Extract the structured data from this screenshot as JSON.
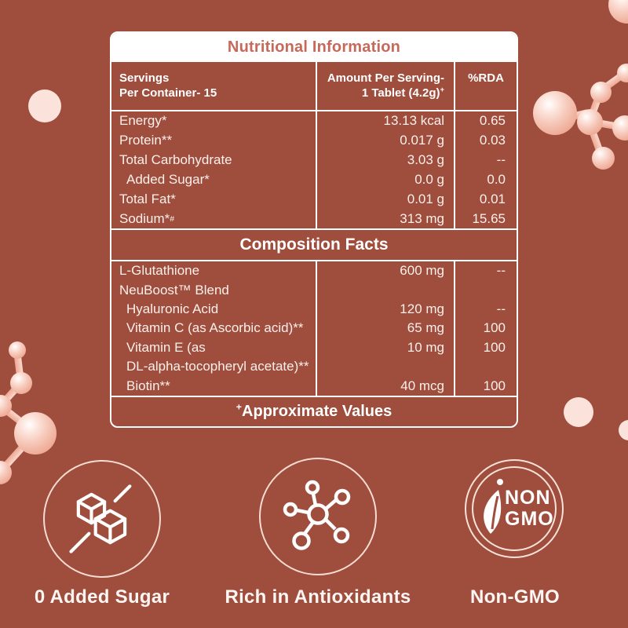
{
  "colors": {
    "background": "#9F4D3C",
    "table_border": "#FFFFFF",
    "title_bar_bg": "#FFFFFF",
    "title_text": "#C7695A",
    "body_text": "#FAF0EC",
    "decor_pink": "#FBE3DB"
  },
  "icons": {
    "no_sugar": "sugar-cubes-crossed-icon",
    "antioxidants": "molecule-network-icon",
    "non_gmo": "leaf-badge-icon"
  },
  "table": {
    "title": "Nutritional Information",
    "header": {
      "col1_line1": "Servings",
      "col1_line2": "Per Container- 15",
      "col2_line1": "Amount Per Serving-",
      "col2_line2": "1 Tablet (4.2g)",
      "col2_line2_sup": "+",
      "col3": "%RDA"
    },
    "nutrition_rows": [
      {
        "label": "Energy*",
        "amount": "13.13 kcal",
        "rda": "0.65"
      },
      {
        "label": "Protein**",
        "amount": "0.017 g",
        "rda": "0.03"
      },
      {
        "label": "Total Carbohydrate",
        "amount": "3.03 g",
        "rda": "--"
      },
      {
        "label": "Added Sugar*",
        "amount": "0.0 g",
        "rda": "0.0",
        "indent": true
      },
      {
        "label": "Total Fat*",
        "amount": "0.01 g",
        "rda": "0.01"
      },
      {
        "label": "Sodium*",
        "label_sup": "#",
        "amount": "313 mg",
        "rda": "15.65"
      }
    ],
    "composition_title": "Composition Facts",
    "composition_rows": [
      {
        "label": "L-Glutathione",
        "amount": "600 mg",
        "rda": "--"
      },
      {
        "label": "NeuBoost™ Blend",
        "amount": "",
        "rda": ""
      },
      {
        "label": "Hyaluronic Acid",
        "amount": "120 mg",
        "rda": "--",
        "indent": true
      },
      {
        "label": "Vitamin C (as Ascorbic acid)**",
        "amount": "65 mg",
        "rda": "100",
        "indent": true
      },
      {
        "label": "Vitamin E (as",
        "amount": "10 mg",
        "rda": "100",
        "indent": true
      },
      {
        "label": "DL-alpha-tocopheryl acetate)**",
        "amount": "",
        "rda": "",
        "indent": true
      },
      {
        "label": "Biotin**",
        "amount": "40 mcg",
        "rda": "100",
        "indent": true
      }
    ],
    "footer_sup": "+",
    "footer_text": "Approximate Values"
  },
  "badges": [
    {
      "label": "0 Added Sugar"
    },
    {
      "label": "Rich in Antioxidants"
    },
    {
      "label": "Non-GMO",
      "badge_text": [
        "NON",
        "GMO"
      ]
    }
  ]
}
